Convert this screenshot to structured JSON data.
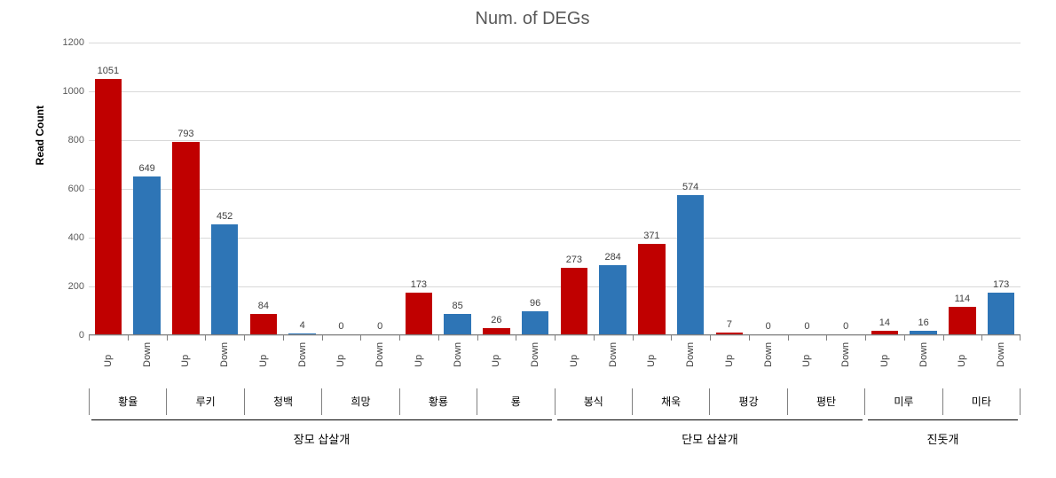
{
  "chart": {
    "type": "bar",
    "title": "Num. of DEGs",
    "title_fontsize": 20,
    "title_color": "#595959",
    "ylabel": "Read Count",
    "ylabel_fontsize": 12,
    "ylim": [
      0,
      1200
    ],
    "ytick_step": 200,
    "yticks": [
      0,
      200,
      400,
      600,
      800,
      1000,
      1200
    ],
    "background_color": "#ffffff",
    "grid_color": "#d9d9d9",
    "axis_color": "#808080",
    "bar_width_ratio": 0.7,
    "label_fontsize": 11,
    "data_label_fontsize": 11,
    "colors": {
      "up": "#c00000",
      "down": "#2e75b6"
    },
    "groups": [
      {
        "label": "장모 삽살개",
        "span": 6
      },
      {
        "label": "단모 삽살개",
        "span": 4
      },
      {
        "label": "진돗개",
        "span": 2
      }
    ],
    "categories": [
      {
        "name": "황율",
        "up": 1051,
        "down": 649
      },
      {
        "name": "루키",
        "up": 793,
        "down": 452
      },
      {
        "name": "청백",
        "up": 84,
        "down": 4
      },
      {
        "name": "희망",
        "up": 0,
        "down": 0
      },
      {
        "name": "황룡",
        "up": 173,
        "down": 85
      },
      {
        "name": "룡",
        "up": 26,
        "down": 96
      },
      {
        "name": "봉식",
        "up": 273,
        "down": 284
      },
      {
        "name": "채욱",
        "up": 371,
        "down": 574
      },
      {
        "name": "평강",
        "up": 7,
        "down": 0
      },
      {
        "name": "평탄",
        "up": 0,
        "down": 0
      },
      {
        "name": "미루",
        "up": 14,
        "down": 16
      },
      {
        "name": "미타",
        "up": 114,
        "down": 173
      }
    ],
    "subcategory_labels": [
      "Up",
      "Down"
    ]
  }
}
